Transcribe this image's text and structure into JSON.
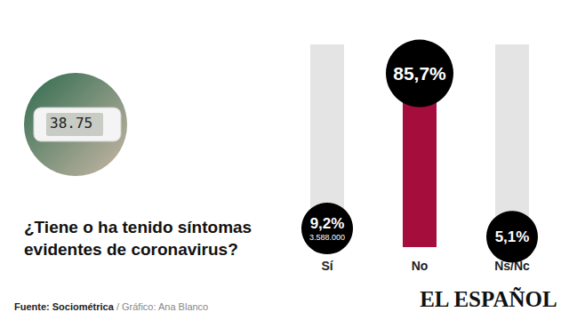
{
  "chart_data": {
    "type": "bar",
    "title": "¿Tiene o ha tenido síntomas evidentes de coronavirus?",
    "categories": [
      "Sí",
      "No",
      "Ns/Nc"
    ],
    "values": [
      9.2,
      85.7,
      5.1
    ],
    "value_labels": [
      "9,2%",
      "85,7%",
      "5,1%"
    ],
    "annotations": [
      {
        "category": "Sí",
        "text": "3.588.000"
      }
    ],
    "color": "#a50d3c",
    "ylim": [
      0,
      100
    ],
    "data_labels": true,
    "tick_labels": "x",
    "grid": false,
    "source": "Fuente: Sociométrica / Gráfico: Ana Blanco",
    "brand": "EL ESPAÑOL",
    "photo_text": "38.75"
  }
}
